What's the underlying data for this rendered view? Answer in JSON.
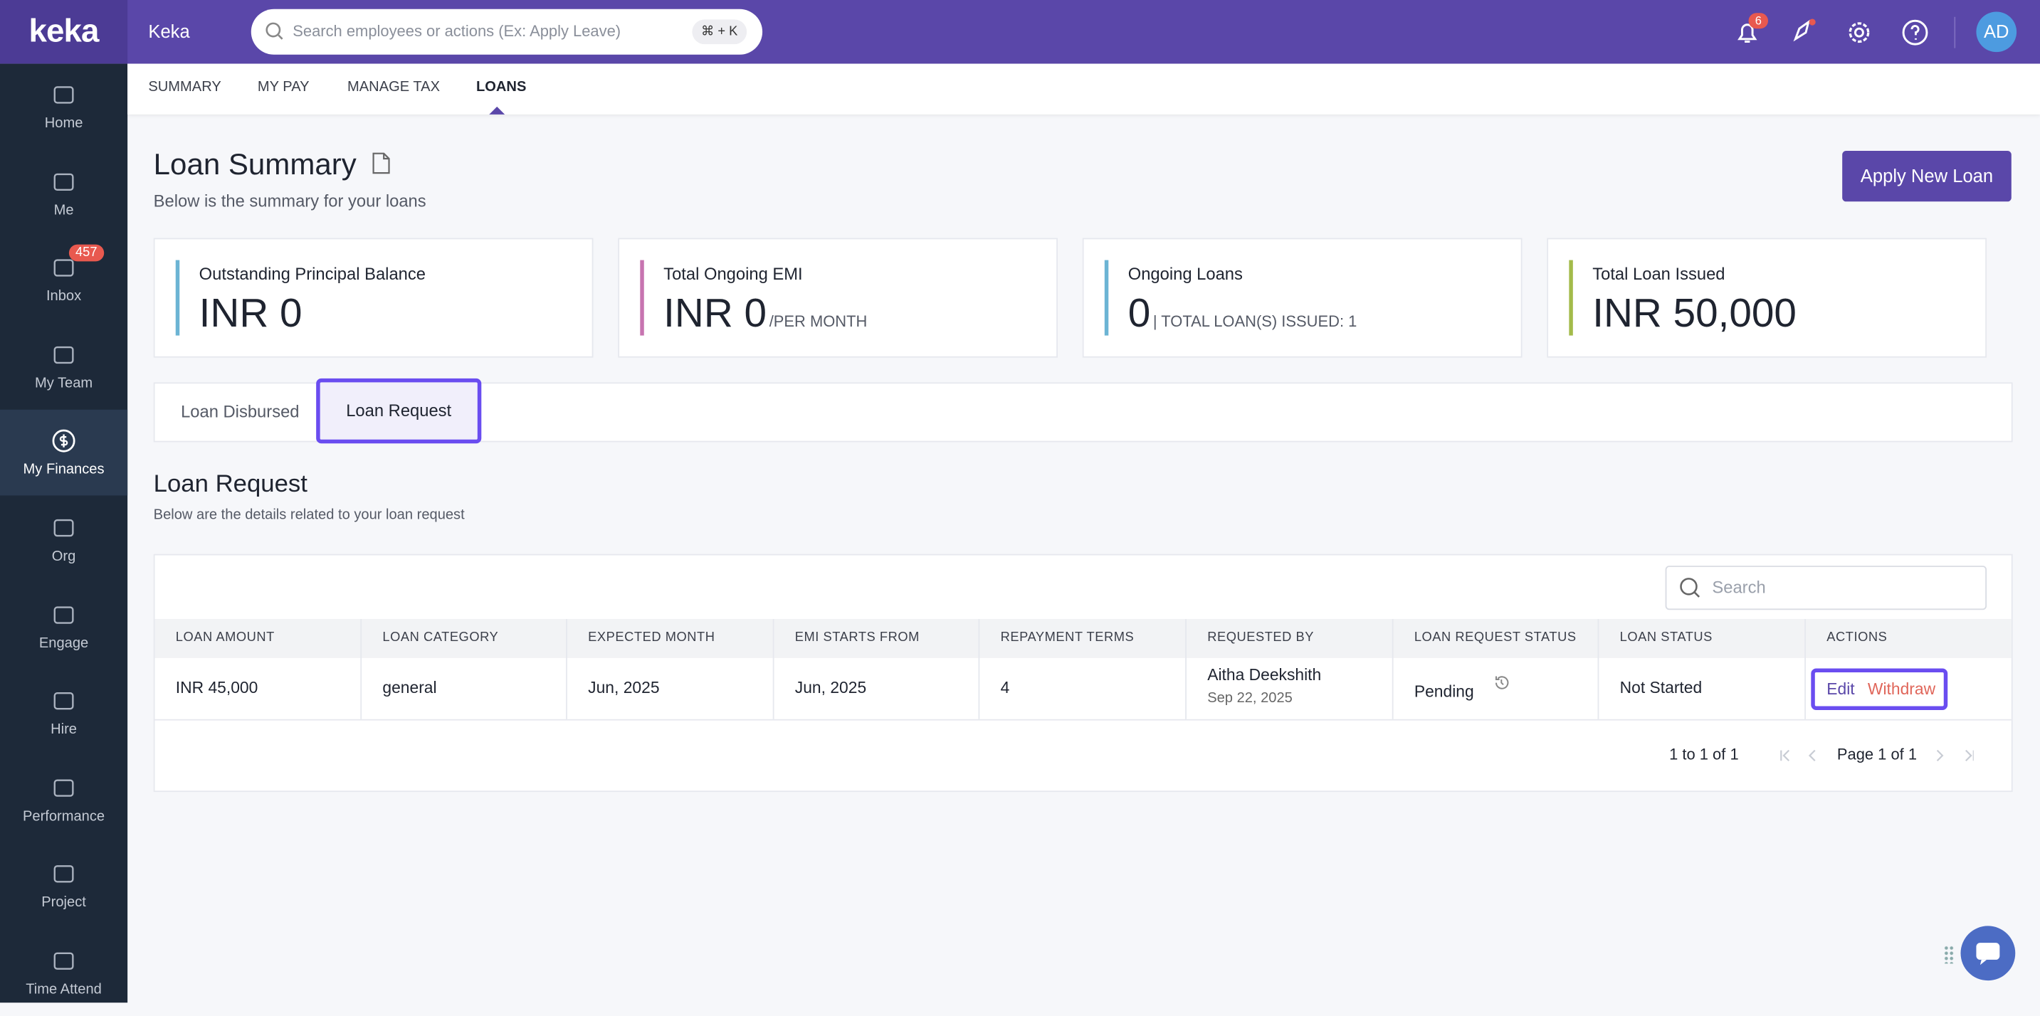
{
  "brand": "keka",
  "topbar": {
    "org": "Keka",
    "search_placeholder": "Search employees or actions (Ex: Apply Leave)",
    "shortcut": "⌘ + K",
    "notification_count": "6",
    "avatar": "AD"
  },
  "sidebar": [
    {
      "label": "Home"
    },
    {
      "label": "Me"
    },
    {
      "label": "Inbox",
      "badge": "457"
    },
    {
      "label": "My Team"
    },
    {
      "label": "My Finances",
      "active": true
    },
    {
      "label": "Org"
    },
    {
      "label": "Engage"
    },
    {
      "label": "Hire"
    },
    {
      "label": "Performance"
    },
    {
      "label": "Project"
    },
    {
      "label": "Time Attend"
    }
  ],
  "subnav": [
    {
      "label": "SUMMARY"
    },
    {
      "label": "MY PAY"
    },
    {
      "label": "MANAGE TAX"
    },
    {
      "label": "LOANS",
      "active": true
    }
  ],
  "header": {
    "title": "Loan Summary",
    "subtitle": "Below is the summary for your loans",
    "button": "Apply New Loan"
  },
  "cards": [
    {
      "label": "Outstanding Principal Balance",
      "value": "INR 0",
      "color": "#6cb4d4"
    },
    {
      "label": "Total Ongoing EMI",
      "value": "INR 0",
      "suffix": "/PER MONTH",
      "color": "#c774b0"
    },
    {
      "label": "Ongoing Loans",
      "value": "0",
      "suffix": "| TOTAL LOAN(S) ISSUED: 1",
      "color": "#6cb4d4"
    },
    {
      "label": "Total Loan Issued",
      "value": "INR 50,000",
      "color": "#a3bb4a"
    }
  ],
  "tabs": [
    {
      "label": "Loan Disbursed"
    },
    {
      "label": "Loan Request",
      "active": true
    }
  ],
  "section": {
    "title": "Loan Request",
    "subtitle": "Below are the details related to your loan request",
    "search_placeholder": "Search"
  },
  "table": {
    "columns": [
      "LOAN AMOUNT",
      "LOAN CATEGORY",
      "EXPECTED MONTH",
      "EMI STARTS FROM",
      "REPAYMENT TERMS",
      "REQUESTED BY",
      "LOAN REQUEST STATUS",
      "LOAN STATUS",
      "ACTIONS"
    ],
    "rows": [
      {
        "loan_amount": "INR 45,000",
        "loan_category": "general",
        "expected_month": "Jun, 2025",
        "emi_starts_from": "Jun, 2025",
        "repayment_terms": "4",
        "requested_by": "Aitha Deekshith",
        "requested_on": "Sep 22, 2025",
        "request_status": "Pending",
        "loan_status": "Not Started",
        "actions": [
          "Edit",
          "Withdraw"
        ]
      }
    ]
  },
  "pagination": {
    "range": "1 to 1 of 1",
    "page": "Page 1 of 1"
  }
}
